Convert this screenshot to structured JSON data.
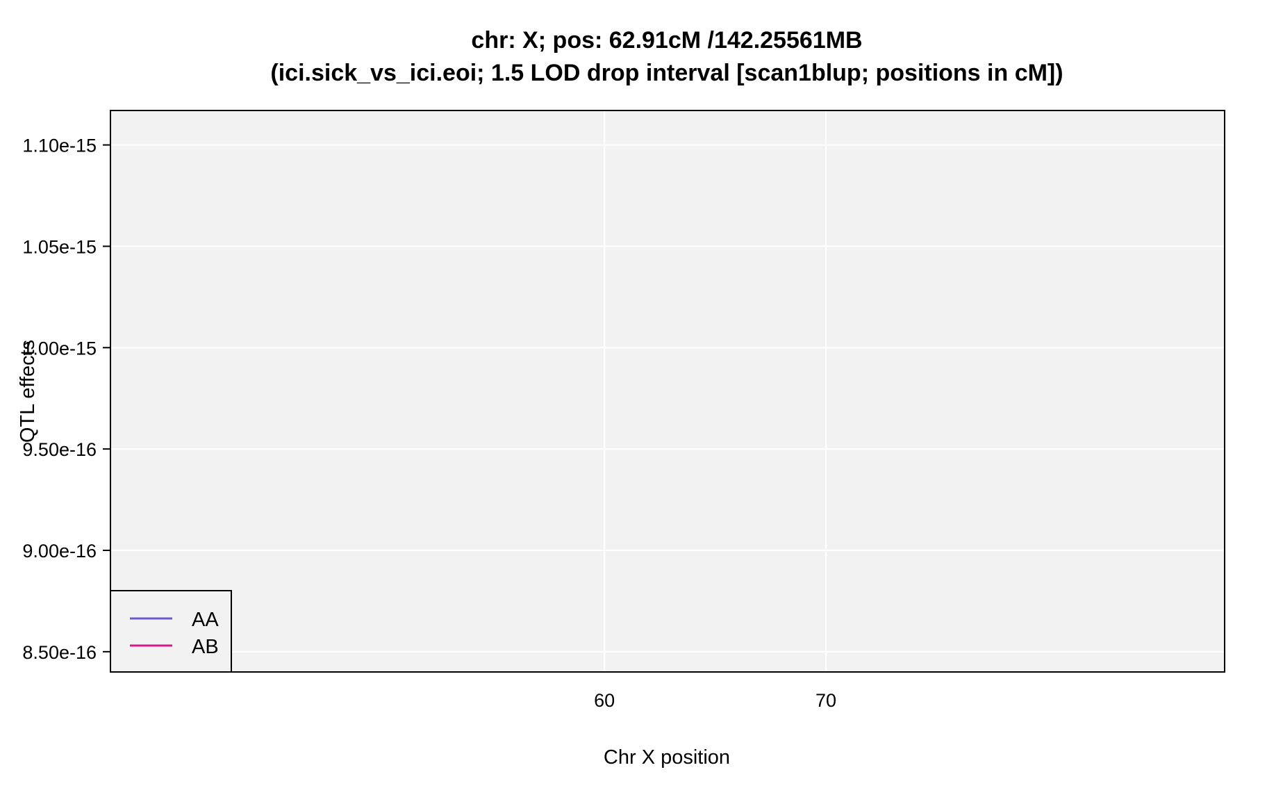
{
  "chart_data": {
    "type": "line",
    "title": "chr: X; pos: 62.91cM /142.25561MB",
    "subtitle": "(ici.sick_vs_ici.eoi; 1.5 LOD drop interval [scan1blup; positions in cM])",
    "xlabel": "Chr X position",
    "ylabel": "QTL effects",
    "xlim": [
      37.7,
      88.0
    ],
    "ylim": [
      8.4e-16,
      1.117e-15
    ],
    "x_ticks": [
      60,
      70
    ],
    "x_tick_labels": [
      "60",
      "70"
    ],
    "y_ticks": [
      8.5e-16,
      9e-16,
      9.5e-16,
      1e-15,
      1.05e-15,
      1.1e-15
    ],
    "y_tick_labels": [
      "8.50e-16",
      "9.00e-16",
      "9.50e-16",
      "1.00e-15",
      "1.05e-15",
      "1.10e-15"
    ],
    "grid": true,
    "background_color": "#f2f2f2",
    "grid_color": "#ffffff",
    "legend_position": "bottom-left",
    "series": [
      {
        "name": "AA",
        "color": "#6a5acd",
        "x": [],
        "y": []
      },
      {
        "name": "AB",
        "color": "#d6198a",
        "x": [],
        "y": []
      }
    ]
  }
}
